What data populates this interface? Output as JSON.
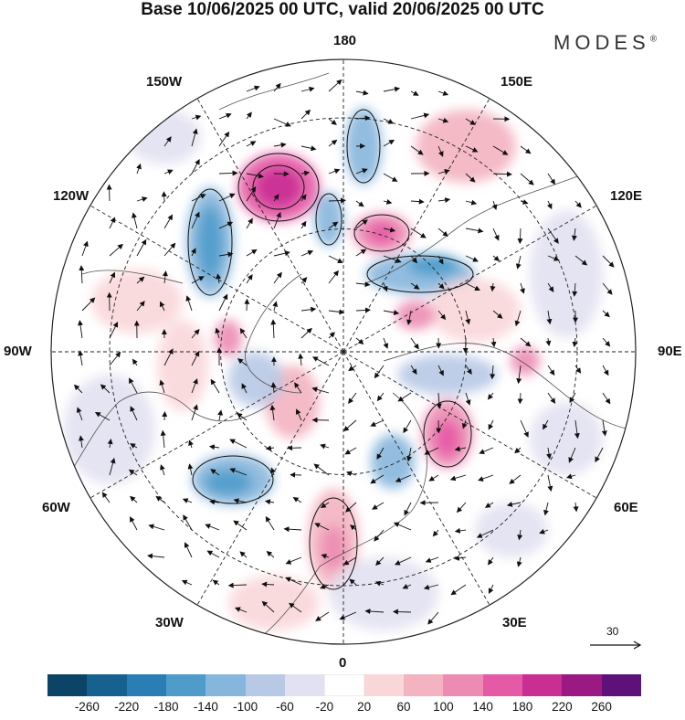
{
  "header": {
    "title": "Base 10/06/2025 00 UTC, valid 20/06/2025 00 UTC",
    "brand": "MODES",
    "brand_mark": "®"
  },
  "map": {
    "projection": "north-polar-stereographic",
    "longitude_labels": {
      "top": "180",
      "top_left": "150W",
      "top_right": "150E",
      "upper_left": "120W",
      "upper_right": "120E",
      "left": "90W",
      "right": "90E",
      "lower_left": "60W",
      "lower_right": "60E",
      "bottom_left": "30W",
      "bottom_right": "30E",
      "bottom": "0"
    },
    "vector_reference": {
      "value": "30"
    },
    "field": "geopotential height anomaly with wind vectors"
  },
  "colorbar": {
    "colors": [
      "#0b4466",
      "#17618f",
      "#2a7db5",
      "#4f9ccb",
      "#86b6dc",
      "#b8c9e6",
      "#e2e1f1",
      "#ffffff",
      "#f9d7d9",
      "#f3b3c0",
      "#ec8cb2",
      "#e55aa5",
      "#c92e93",
      "#9a1982",
      "#5e1178"
    ],
    "labels": [
      "-260",
      "-220",
      "-180",
      "-140",
      "-100",
      "-60",
      "-20",
      "20",
      "60",
      "100",
      "140",
      "180",
      "220",
      "260"
    ]
  }
}
